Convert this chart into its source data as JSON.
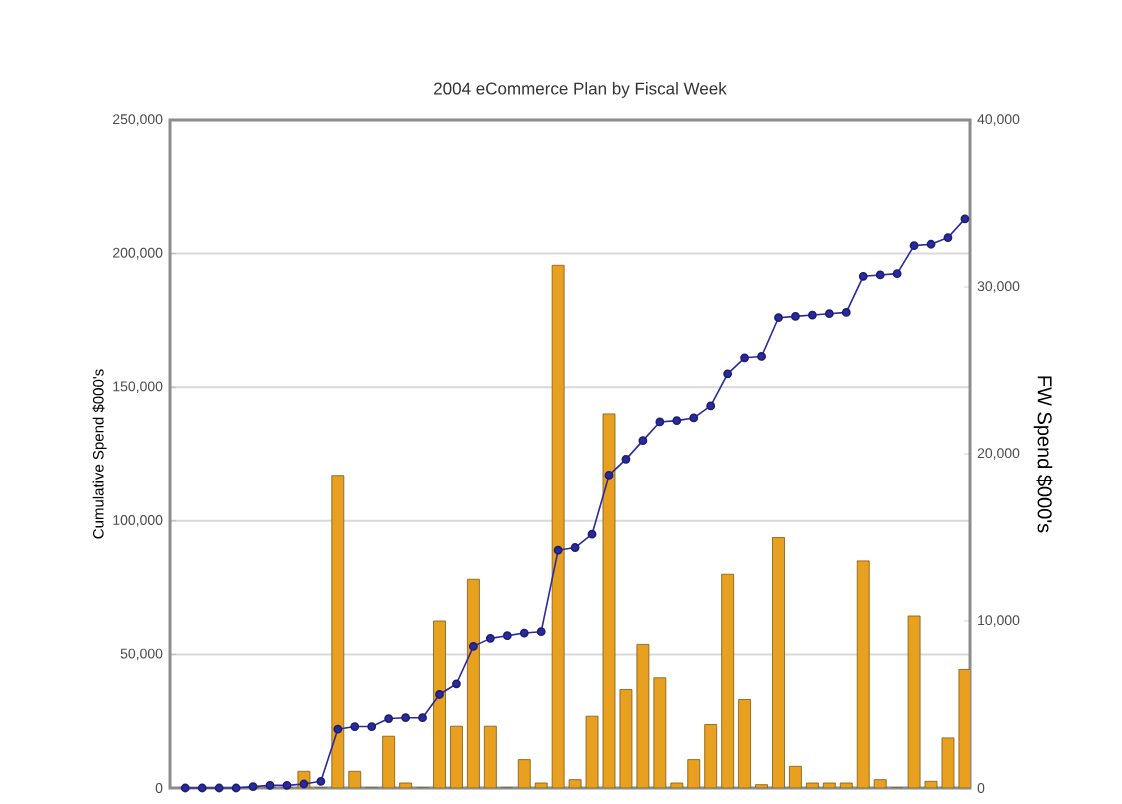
{
  "chart_data": {
    "type": "bar",
    "title": "2004 eCommerce Plan by Fiscal Week",
    "ylabel": "Cumulative Spend $000's",
    "y2label": "FW Spend $000's",
    "categories": [
      null,
      null,
      null,
      null,
      null,
      null,
      null,
      null,
      null,
      null,
      null,
      null,
      null,
      null,
      null,
      null,
      null,
      null,
      null,
      null,
      null,
      null,
      null,
      null,
      null,
      null,
      null,
      null,
      null,
      null,
      null,
      null,
      null,
      null,
      null,
      null,
      null,
      null,
      null,
      null,
      null,
      null,
      null,
      null,
      null,
      null,
      null
    ],
    "series": [
      {
        "axis": "y2",
        "color": "#e8a020",
        "values": [
          0,
          0,
          0,
          0,
          0,
          0,
          0,
          1000,
          0,
          18700,
          1000,
          0,
          3100,
          300,
          0,
          10000,
          3700,
          12500,
          3700,
          0,
          1700,
          300,
          31300,
          500,
          4300,
          22400,
          5900,
          8600,
          6600,
          300,
          1700,
          3800,
          12800,
          5300,
          200,
          15000,
          1300,
          300,
          300,
          300,
          13600,
          500,
          0,
          10300,
          400,
          3000,
          7100
        ]
      },
      {
        "type": "line",
        "color": "#2a2aa0",
        "values": [
          0,
          0,
          0,
          0,
          500,
          1000,
          1000,
          1500,
          2500,
          22000,
          23000,
          23000,
          26000,
          26300,
          26300,
          35000,
          39000,
          53000,
          56000,
          57000,
          58000,
          58500,
          89000,
          90000,
          95000,
          117000,
          123000,
          130000,
          137000,
          137500,
          138500,
          143000,
          155000,
          161000,
          161500,
          176000,
          176500,
          177000,
          177500,
          178000,
          191500,
          192000,
          192500,
          203000,
          203500,
          206000,
          213000
        ]
      }
    ],
    "ylim": [
      0,
      250000
    ],
    "yticks": [
      {
        "value": 0,
        "label": "0"
      },
      {
        "value": 50000,
        "label": "50,000"
      },
      {
        "value": 100000,
        "label": "100,000"
      },
      {
        "value": 150000,
        "label": "150,000"
      },
      {
        "value": 200000,
        "label": "200,000"
      },
      {
        "value": 250000,
        "label": "250,000"
      }
    ],
    "y2lim": [
      0,
      40000
    ],
    "y2ticks": [
      {
        "value": 0,
        "label": "0"
      },
      {
        "value": 10000,
        "label": "10,000"
      },
      {
        "value": 20000,
        "label": "20,000"
      },
      {
        "value": 30000,
        "label": "30,000"
      },
      {
        "value": 40000,
        "label": "40,000"
      }
    ],
    "grid": "y",
    "marker": "circle"
  }
}
